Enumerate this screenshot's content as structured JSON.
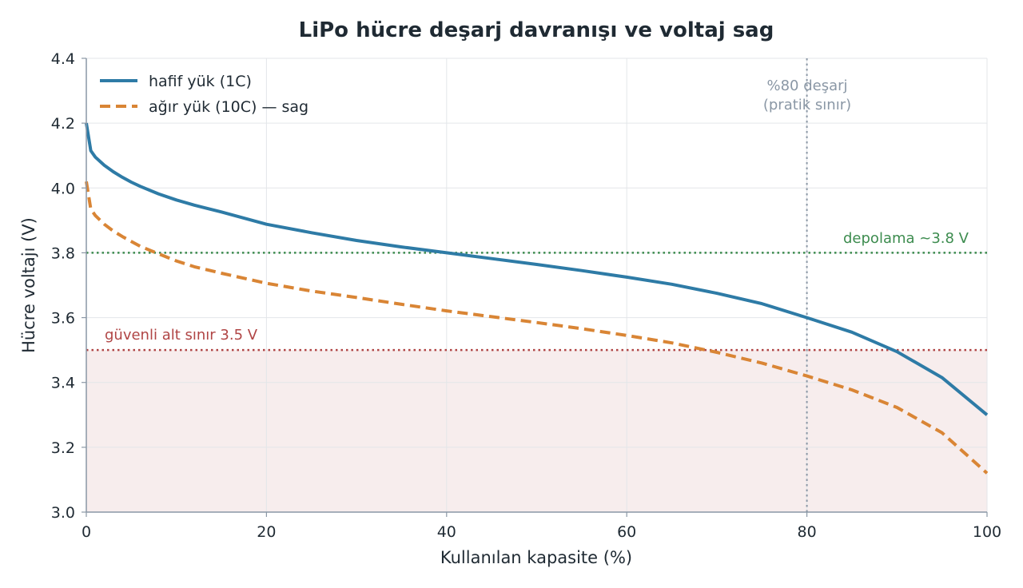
{
  "chart_data": {
    "type": "line",
    "title": "LiPo hücre deşarj davranışı ve voltaj sag",
    "xlabel": "Kullanılan kapasite (%)",
    "ylabel": "Hücre voltajı (V)",
    "xlim": [
      0,
      100
    ],
    "ylim": [
      3.0,
      4.4
    ],
    "xticks": [
      "0",
      "20",
      "40",
      "60",
      "80",
      "100"
    ],
    "yticks": [
      "3.0",
      "3.2",
      "3.4",
      "3.6",
      "3.8",
      "4.0",
      "4.2",
      "4.4"
    ],
    "grid": true,
    "legend_position": "top-left",
    "series": [
      {
        "name": "hafif yük (1C)",
        "color": "#2e7ba6",
        "style": "solid",
        "x": [
          0,
          0.5,
          1,
          2,
          3,
          4,
          5,
          6,
          8,
          10,
          12,
          15,
          20,
          25,
          30,
          35,
          40,
          45,
          50,
          55,
          60,
          65,
          70,
          75,
          80,
          85,
          90,
          95,
          100
        ],
        "y": [
          4.2,
          4.115,
          4.095,
          4.07,
          4.05,
          4.033,
          4.018,
          4.005,
          3.982,
          3.963,
          3.947,
          3.926,
          3.888,
          3.862,
          3.838,
          3.818,
          3.8,
          3.782,
          3.764,
          3.745,
          3.725,
          3.703,
          3.675,
          3.643,
          3.6,
          3.555,
          3.495,
          3.415,
          3.3
        ]
      },
      {
        "name": "ağır yük (10C) — sag",
        "color": "#d98535",
        "style": "dashed",
        "x": [
          0,
          0.5,
          1,
          2,
          3,
          4,
          5,
          6,
          8,
          10,
          12,
          15,
          20,
          25,
          30,
          35,
          40,
          45,
          50,
          55,
          60,
          65,
          70,
          75,
          80,
          85,
          90,
          95,
          100
        ],
        "y": [
          4.02,
          3.935,
          3.915,
          3.888,
          3.867,
          3.85,
          3.835,
          3.82,
          3.797,
          3.775,
          3.757,
          3.737,
          3.706,
          3.682,
          3.662,
          3.641,
          3.621,
          3.603,
          3.585,
          3.566,
          3.545,
          3.522,
          3.493,
          3.46,
          3.42,
          3.377,
          3.323,
          3.245,
          3.12
        ]
      }
    ],
    "reference_lines": [
      {
        "orientation": "horizontal",
        "y": 3.8,
        "label": "depolama ~3.8 V",
        "color": "#3d8c4f",
        "style": "dotted"
      },
      {
        "orientation": "horizontal",
        "y": 3.5,
        "label": "güvenli alt sınır 3.5 V",
        "color": "#b04545",
        "style": "dotted"
      },
      {
        "orientation": "vertical",
        "x": 80,
        "label_line1": "%80 deşarj",
        "label_line2": "(pratik sınır)",
        "color": "#8a97a5",
        "style": "dotted"
      }
    ],
    "shaded_region": {
      "y_from": 3.0,
      "y_to": 3.5,
      "color": "#f7eded"
    }
  }
}
